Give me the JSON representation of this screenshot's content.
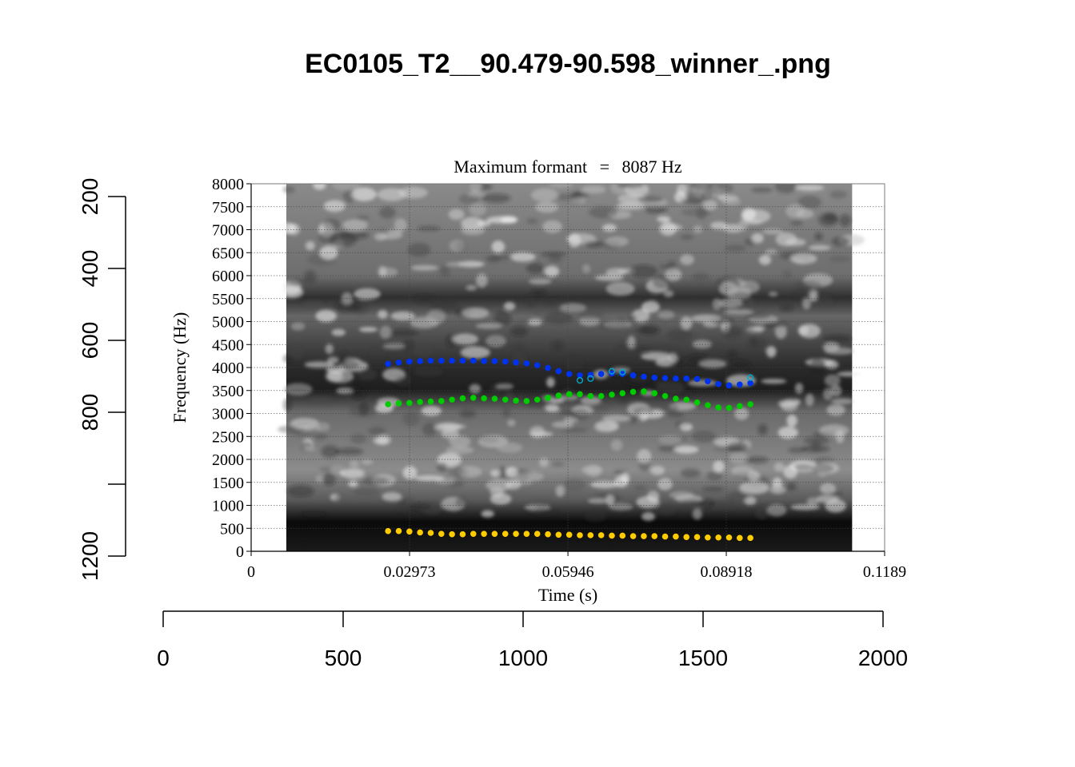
{
  "figure": {
    "title": "EC0105_T2__90.479-90.598_winner_.png"
  },
  "chart_data": [
    {
      "type": "scatter",
      "subtype": "spectrogram-with-formant-tracks",
      "title": "Maximum formant = 8087 Hz",
      "title_parts": {
        "left": "Maximum formant",
        "eq": "=",
        "right": "8087 Hz"
      },
      "xlabel": "Time (s)",
      "ylabel": "Frequency (Hz)",
      "xlim": [
        0,
        0.1189
      ],
      "ylim": [
        0,
        8000
      ],
      "xticks": [
        0,
        0.02973,
        0.05946,
        0.08918,
        0.1189
      ],
      "xtick_labels": [
        "0",
        "0.02973",
        "0.05946",
        "0.08918",
        "0.1189"
      ],
      "yticks": [
        0,
        500,
        1000,
        1500,
        2000,
        2500,
        3000,
        3500,
        4000,
        4500,
        5000,
        5500,
        6000,
        6500,
        7000,
        7500,
        8000
      ],
      "ytick_labels": [
        "0",
        "500",
        "1000",
        "1500",
        "2000",
        "2500",
        "3000",
        "3500",
        "4000",
        "4500",
        "5000",
        "5500",
        "6000",
        "6500",
        "7000",
        "7500",
        "8000"
      ],
      "grid": true,
      "spectrogram_time_range": [
        0.0066,
        0.1128
      ],
      "series": [
        {
          "color": "#ffcc00",
          "x": [
            0.0257,
            0.0277,
            0.0297,
            0.0317,
            0.0337,
            0.0357,
            0.0377,
            0.0397,
            0.0417,
            0.0437,
            0.0457,
            0.0477,
            0.0497,
            0.0517,
            0.0537,
            0.0557,
            0.0577,
            0.0597,
            0.0617,
            0.0637,
            0.0657,
            0.0677,
            0.0697,
            0.0717,
            0.0737,
            0.0757,
            0.0777,
            0.0797,
            0.0817,
            0.0837,
            0.0857,
            0.0877,
            0.0897,
            0.0917,
            0.0937
          ],
          "y": [
            440,
            440,
            430,
            410,
            400,
            380,
            370,
            370,
            380,
            380,
            380,
            380,
            380,
            380,
            380,
            370,
            360,
            360,
            350,
            350,
            350,
            340,
            340,
            330,
            330,
            330,
            320,
            320,
            310,
            310,
            300,
            300,
            300,
            290,
            290
          ]
        },
        {
          "color": "#00cc00",
          "x": [
            0.0257,
            0.0277,
            0.0297,
            0.0317,
            0.0337,
            0.0357,
            0.0377,
            0.0397,
            0.0417,
            0.0437,
            0.0457,
            0.0477,
            0.0497,
            0.0517,
            0.0537,
            0.0557,
            0.0577,
            0.0597,
            0.0617,
            0.0637,
            0.0657,
            0.0677,
            0.0697,
            0.0717,
            0.0737,
            0.0757,
            0.0777,
            0.0797,
            0.0817,
            0.0837,
            0.0857,
            0.0877,
            0.0897,
            0.0917,
            0.0937
          ],
          "y": [
            3200,
            3220,
            3230,
            3250,
            3260,
            3270,
            3300,
            3330,
            3340,
            3330,
            3320,
            3300,
            3280,
            3270,
            3300,
            3340,
            3390,
            3420,
            3420,
            3380,
            3380,
            3410,
            3440,
            3470,
            3480,
            3440,
            3380,
            3320,
            3300,
            3240,
            3180,
            3130,
            3120,
            3160,
            3200
          ]
        },
        {
          "color": "#0033ee",
          "x": [
            0.0257,
            0.0277,
            0.0297,
            0.0317,
            0.0337,
            0.0357,
            0.0377,
            0.0397,
            0.0417,
            0.0437,
            0.0457,
            0.0477,
            0.0497,
            0.0517,
            0.0537,
            0.0557,
            0.0577,
            0.0597,
            0.0617,
            0.0637,
            0.0657,
            0.0677,
            0.0697,
            0.0717,
            0.0737,
            0.0757,
            0.0777,
            0.0797,
            0.0817,
            0.0837,
            0.0857,
            0.0877,
            0.0897,
            0.0917,
            0.0937
          ],
          "y": [
            4080,
            4110,
            4130,
            4140,
            4150,
            4150,
            4150,
            4150,
            4150,
            4140,
            4140,
            4130,
            4110,
            4090,
            4050,
            3990,
            3920,
            3860,
            3830,
            3840,
            3860,
            3870,
            3860,
            3830,
            3800,
            3780,
            3770,
            3760,
            3760,
            3750,
            3700,
            3640,
            3610,
            3630,
            3660
          ]
        },
        {
          "color": "#00aacc",
          "x": [
            0.0617,
            0.0637,
            0.0677,
            0.0697,
            0.0937
          ],
          "y": [
            3720,
            3760,
            3920,
            3900,
            3780
          ]
        }
      ]
    },
    {
      "type": "axis",
      "orientation": "left",
      "tick_values": [
        200,
        400,
        600,
        800,
        1000,
        1200
      ],
      "tick_labels": [
        "200",
        "400",
        "600",
        "800",
        "",
        "1200"
      ],
      "lim": [
        200,
        1200
      ]
    },
    {
      "type": "axis",
      "orientation": "bottom",
      "tick_values": [
        0,
        500,
        1000,
        1500,
        2000
      ],
      "tick_labels": [
        "0",
        "500",
        "1000",
        "1500",
        "2000"
      ],
      "lim": [
        0,
        2000
      ]
    }
  ]
}
